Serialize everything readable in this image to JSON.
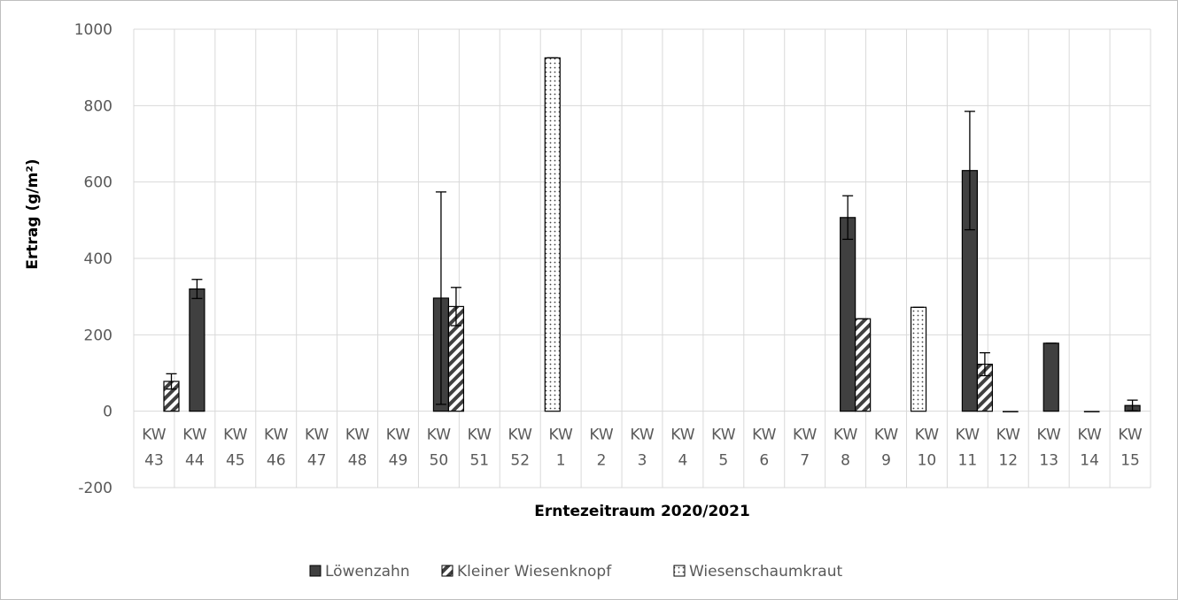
{
  "chart_data": {
    "type": "bar",
    "title": "",
    "xlabel": "Erntezeitraum 2020/2021",
    "ylabel": "Ertrag (g/m²)",
    "ylim": [
      -200,
      1000
    ],
    "yticks": [
      -200,
      0,
      200,
      400,
      600,
      800,
      1000
    ],
    "grid": true,
    "legend_position": "bottom",
    "categories": [
      [
        "KW",
        "43"
      ],
      [
        "KW",
        "44"
      ],
      [
        "KW",
        "45"
      ],
      [
        "KW",
        "46"
      ],
      [
        "KW",
        "47"
      ],
      [
        "KW",
        "48"
      ],
      [
        "KW",
        "49"
      ],
      [
        "KW",
        "50"
      ],
      [
        "KW",
        "51"
      ],
      [
        "KW",
        "52"
      ],
      [
        "KW",
        "1"
      ],
      [
        "KW",
        "2"
      ],
      [
        "KW",
        "3"
      ],
      [
        "KW",
        "4"
      ],
      [
        "KW",
        "5"
      ],
      [
        "KW",
        "6"
      ],
      [
        "KW",
        "7"
      ],
      [
        "KW",
        "8"
      ],
      [
        "KW",
        "9"
      ],
      [
        "KW",
        "10"
      ],
      [
        "KW",
        "11"
      ],
      [
        "KW",
        "12"
      ],
      [
        "KW",
        "13"
      ],
      [
        "KW",
        "14"
      ],
      [
        "KW",
        "15"
      ]
    ],
    "series": [
      {
        "name": "Löwenzahn",
        "pattern": "solid",
        "color": "#404040",
        "values": [
          null,
          320,
          null,
          null,
          null,
          null,
          null,
          296,
          null,
          null,
          null,
          null,
          null,
          null,
          null,
          null,
          null,
          507,
          null,
          null,
          630,
          0,
          178,
          0,
          15
        ],
        "errors": [
          null,
          25,
          null,
          null,
          null,
          null,
          null,
          278,
          null,
          null,
          null,
          null,
          null,
          null,
          null,
          null,
          null,
          57,
          null,
          null,
          155,
          null,
          0,
          null,
          14
        ]
      },
      {
        "name": "Kleiner Wiesenknopf",
        "pattern": "hatch",
        "color": "#404040",
        "values": [
          78,
          null,
          null,
          null,
          null,
          null,
          null,
          274,
          null,
          null,
          null,
          null,
          null,
          null,
          null,
          null,
          null,
          242,
          null,
          null,
          123,
          null,
          null,
          null,
          null
        ],
        "errors": [
          20,
          null,
          null,
          null,
          null,
          null,
          null,
          50,
          null,
          null,
          null,
          null,
          null,
          null,
          null,
          null,
          null,
          0,
          null,
          null,
          30,
          null,
          null,
          null,
          null
        ]
      },
      {
        "name": "Wiesenschaumkraut",
        "pattern": "dots",
        "color": "#404040",
        "values": [
          null,
          null,
          null,
          null,
          null,
          null,
          null,
          null,
          null,
          925,
          null,
          null,
          null,
          null,
          null,
          null,
          null,
          null,
          272,
          null,
          null,
          null,
          null,
          null,
          null
        ],
        "errors": [
          null,
          null,
          null,
          null,
          null,
          null,
          null,
          null,
          null,
          0,
          null,
          null,
          null,
          null,
          null,
          null,
          null,
          null,
          0,
          null,
          null,
          null,
          null,
          null,
          null
        ]
      }
    ]
  }
}
